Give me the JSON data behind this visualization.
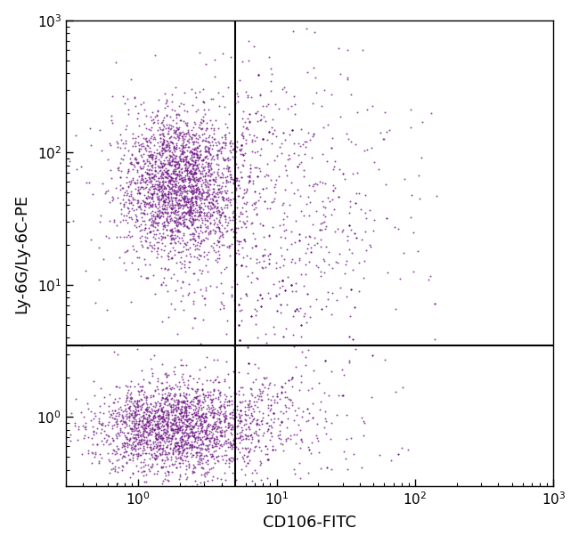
{
  "xlabel": "CD106-FITC",
  "ylabel": "Ly-6G/Ly-6C-PE",
  "xlim": [
    0.3,
    1000
  ],
  "ylim": [
    0.3,
    1000
  ],
  "dot_color": "#6A1080",
  "dot_size": 2.0,
  "dot_alpha": 0.75,
  "gate_x": 5.0,
  "gate_y": 3.5,
  "background_color": "#ffffff",
  "cluster1": {
    "center_x_log": 0.3,
    "center_y_log": 1.75,
    "n": 2200,
    "spread_x": 0.22,
    "spread_y": 0.28
  },
  "cluster2": {
    "center_x_log": 0.25,
    "center_y_log": -0.08,
    "n": 1800,
    "spread_x": 0.28,
    "spread_y": 0.18
  },
  "tail1": {
    "center_x_log": 0.85,
    "center_y_log": 1.55,
    "n": 600,
    "spread_x": 0.45,
    "spread_y": 0.55
  },
  "tail2": {
    "center_x_log": 0.75,
    "center_y_log": -0.05,
    "n": 400,
    "spread_x": 0.4,
    "spread_y": 0.2
  },
  "sparse_upper": {
    "n": 250,
    "x_log_min": 0.72,
    "x_log_max": 2.2,
    "y_log_min": 0.58,
    "y_log_max": 2.8,
    "decay_x": 1.5,
    "decay_y": 0.5
  },
  "sparse_lower": {
    "n": 80,
    "x_log_min": 0.72,
    "x_log_max": 2.0,
    "y_log_min": -0.45,
    "y_log_max": 0.54,
    "decay_x": 1.8
  }
}
